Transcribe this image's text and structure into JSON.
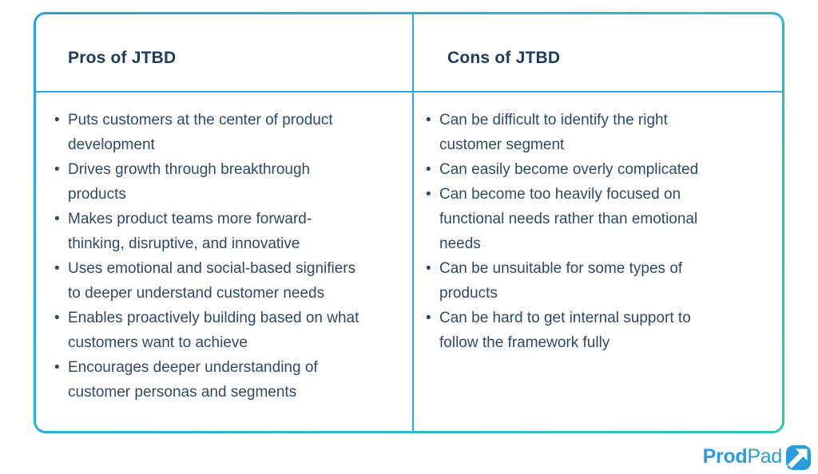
{
  "table": {
    "columns": [
      {
        "header": "Pros of JTBD",
        "items": [
          "Puts customers at the center of product\ndevelopment",
          "Drives growth through breakthrough\nproducts",
          "Makes product teams more forward-\nthinking, disruptive, and innovative",
          "Uses emotional and social-based signifiers\nto deeper understand customer needs",
          "Enables proactively building based on what\ncustomers want to achieve",
          "Encourages deeper understanding of\ncustomer personas and segments"
        ]
      },
      {
        "header": "Cons of JTBD",
        "items": [
          "Can be difficult to identify the right\ncustomer segment",
          "Can easily become overly complicated",
          "Can become too heavily focused on\nfunctional needs rather than emotional\nneeds",
          "Can be unsuitable for some types of\nproducts",
          "Can be hard to get internal support to\nfollow the framework fully"
        ]
      }
    ]
  },
  "branding": {
    "logo_part_bold": "Prod",
    "logo_part_light": "Pad"
  },
  "colors": {
    "border_gradient_start": "#2E9FD8",
    "border_gradient_end": "#2EC4B6",
    "inner_divider": "#29ABE2",
    "header_text": "#1E3A5C",
    "body_text": "#2D4A68",
    "logo_blue": "#2D9CDB",
    "background": "#FFFFFF"
  }
}
